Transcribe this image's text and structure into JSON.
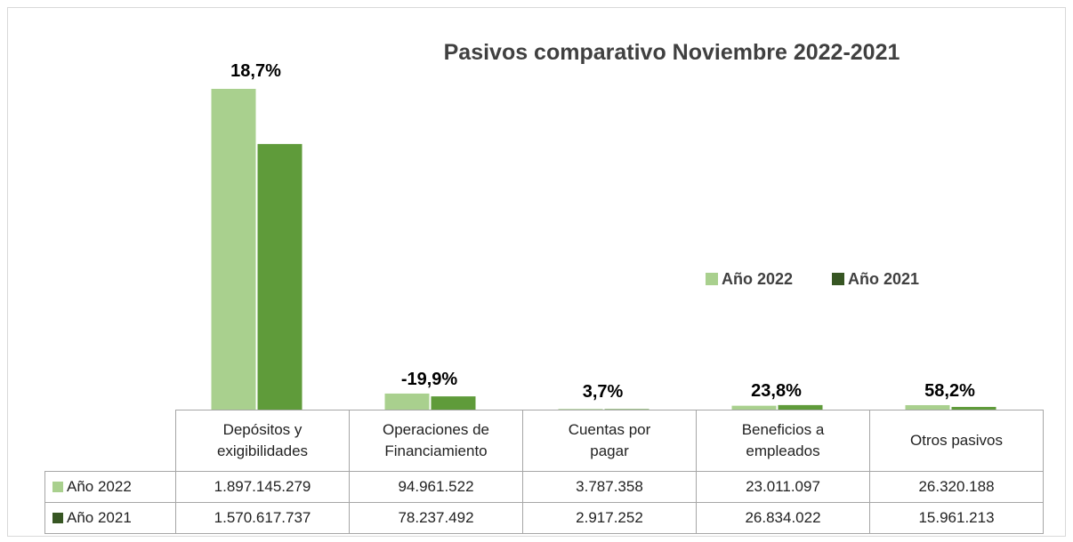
{
  "chart_data": {
    "type": "bar",
    "title": "Pasivos comparativo Noviembre 2022-2021",
    "categories": [
      "Depósitos y exigibilidades",
      "Operaciones de Financiamiento",
      "Cuentas por pagar",
      "Beneficios a empleados",
      "Otros pasivos"
    ],
    "series": [
      {
        "name": "Año 2022",
        "color": "#a9d08e",
        "values": [
          1897145279,
          94961522,
          3787358,
          23011097,
          26320188
        ],
        "value_labels": [
          "1.897.145.279",
          "94.961.522",
          "3.787.358",
          "23.011.097",
          "26.320.188"
        ]
      },
      {
        "name": "Año 2021",
        "color": "#5f9b3a",
        "values": [
          1570617737,
          78237492,
          2917252,
          26834022,
          15961213
        ],
        "value_labels": [
          "1.570.617.737",
          "78.237.492",
          "2.917.252",
          "26.834.022",
          "15.961.213"
        ]
      }
    ],
    "annotations": [
      "18,7%",
      "-19,9%",
      "3,7%",
      "23,8%",
      "58,2%"
    ],
    "legend": "center"
  }
}
